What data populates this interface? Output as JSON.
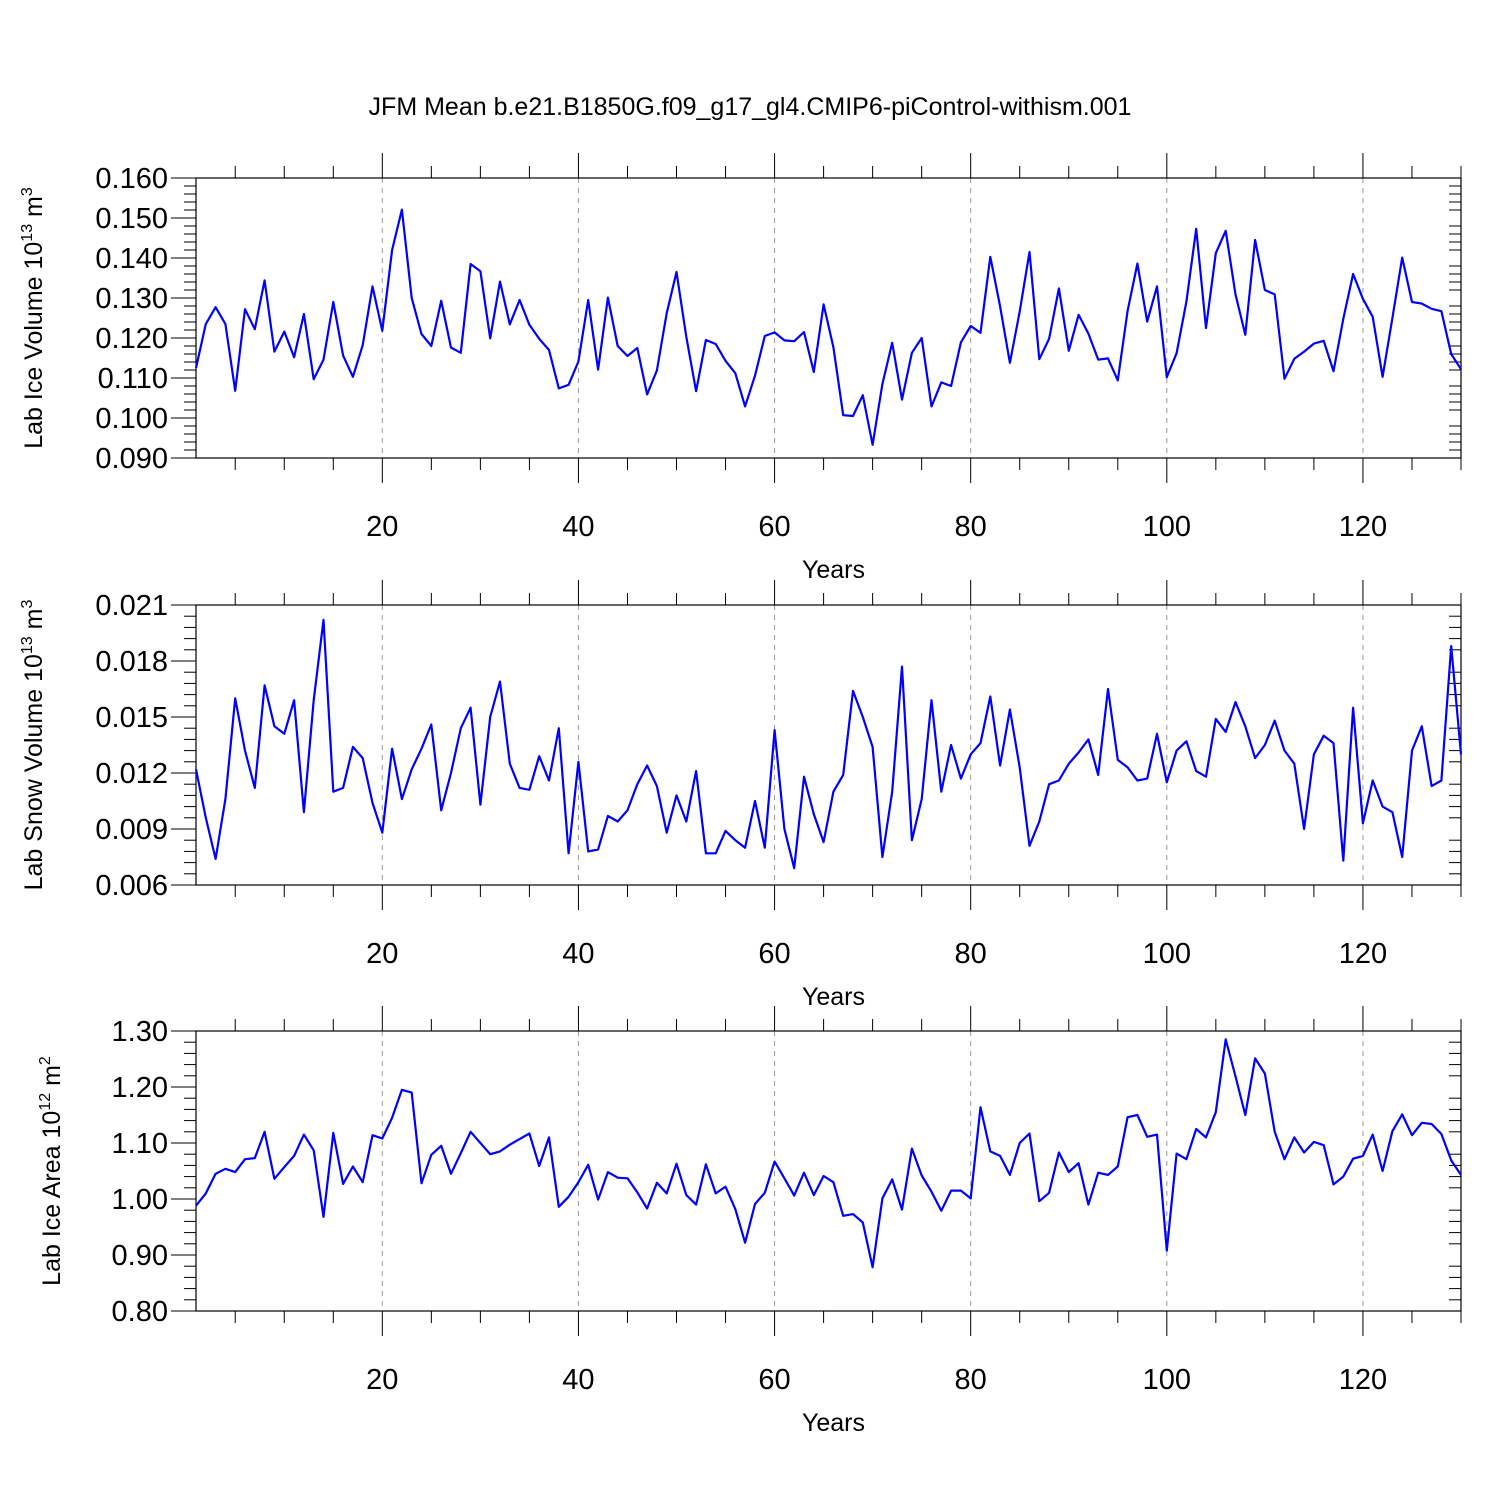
{
  "title": "JFM Mean b.e21.B1850G.f09_g17_gl4.CMIP6-piControl-withism.001",
  "colors": {
    "line": "#0000ff",
    "axis": "#000000",
    "grid": "#999999"
  },
  "chart_data": [
    {
      "type": "line",
      "name": "ice-volume",
      "ylabel": {
        "main": "Lab Ice Volume 10",
        "exp": "13",
        "unit": " m",
        "unit_exp": "3"
      },
      "xlabel": "Years",
      "xlim": [
        1,
        130
      ],
      "ylim": [
        0.09,
        0.16
      ],
      "xticks": [
        20,
        40,
        60,
        80,
        100,
        120
      ],
      "xtick_labels": [
        "20",
        "40",
        "60",
        "80",
        "100",
        "120"
      ],
      "yticks": [
        0.09,
        0.1,
        0.11,
        0.12,
        0.13,
        0.14,
        0.15,
        0.16
      ],
      "ytick_labels": [
        "0.090",
        "0.100",
        "0.110",
        "0.120",
        "0.130",
        "0.140",
        "0.150",
        "0.160"
      ],
      "yminor_step": 0.002,
      "x_start": 1,
      "values": [
        0.1125,
        0.1235,
        0.1277,
        0.1235,
        0.1068,
        0.1272,
        0.1222,
        0.1344,
        0.1166,
        0.1216,
        0.1152,
        0.126,
        0.1097,
        0.1146,
        0.129,
        0.1156,
        0.1103,
        0.1182,
        0.1329,
        0.1218,
        0.142,
        0.1521,
        0.13,
        0.121,
        0.118,
        0.1293,
        0.1176,
        0.1163,
        0.1385,
        0.1367,
        0.1199,
        0.1341,
        0.1234,
        0.1295,
        0.1233,
        0.1198,
        0.117,
        0.1074,
        0.1083,
        0.1141,
        0.1295,
        0.1121,
        0.1301,
        0.118,
        0.1155,
        0.1175,
        0.1059,
        0.1119,
        0.1262,
        0.1365,
        0.1203,
        0.1067,
        0.1195,
        0.1185,
        0.1143,
        0.1112,
        0.1029,
        0.1106,
        0.1205,
        0.1214,
        0.1194,
        0.1192,
        0.1215,
        0.1115,
        0.1284,
        0.1177,
        0.1007,
        0.1005,
        0.1057,
        0.0933,
        0.1085,
        0.1188,
        0.1046,
        0.1163,
        0.12,
        0.1029,
        0.1089,
        0.108,
        0.1189,
        0.123,
        0.1213,
        0.1403,
        0.1279,
        0.1138,
        0.1266,
        0.1415,
        0.1147,
        0.1198,
        0.1324,
        0.1168,
        0.1258,
        0.1211,
        0.1146,
        0.1149,
        0.1094,
        0.1268,
        0.1386,
        0.1241,
        0.1329,
        0.1102,
        0.1162,
        0.1291,
        0.1473,
        0.1225,
        0.1412,
        0.1468,
        0.1309,
        0.1208,
        0.1445,
        0.132,
        0.1309,
        0.1098,
        0.1148,
        0.1166,
        0.1186,
        0.1193,
        0.1117,
        0.1248,
        0.136,
        0.1298,
        0.1253,
        0.1103,
        0.125,
        0.1401,
        0.129,
        0.1286,
        0.1273,
        0.1267,
        0.116,
        0.1122
      ]
    },
    {
      "type": "line",
      "name": "snow-volume",
      "ylabel": {
        "main": "Lab Snow Volume 10",
        "exp": "13",
        "unit": " m",
        "unit_exp": "3"
      },
      "xlabel": "Years",
      "xlim": [
        1,
        130
      ],
      "ylim": [
        0.006,
        0.021
      ],
      "xticks": [
        20,
        40,
        60,
        80,
        100,
        120
      ],
      "xtick_labels": [
        "20",
        "40",
        "60",
        "80",
        "100",
        "120"
      ],
      "yticks": [
        0.006,
        0.009,
        0.012,
        0.015,
        0.018,
        0.021
      ],
      "ytick_labels": [
        "0.006",
        "0.009",
        "0.012",
        "0.015",
        "0.018",
        "0.021"
      ],
      "yminor_step": 0.0006,
      "x_start": 1,
      "values": [
        0.0122,
        0.0096,
        0.0074,
        0.0106,
        0.016,
        0.0132,
        0.0112,
        0.0167,
        0.0145,
        0.0141,
        0.0159,
        0.0099,
        0.0159,
        0.0202,
        0.011,
        0.0112,
        0.0134,
        0.0128,
        0.0104,
        0.0088,
        0.0133,
        0.0106,
        0.0122,
        0.0133,
        0.0146,
        0.01,
        0.012,
        0.0144,
        0.0155,
        0.0103,
        0.015,
        0.0169,
        0.0125,
        0.0112,
        0.0111,
        0.0129,
        0.0116,
        0.0144,
        0.0077,
        0.0126,
        0.0078,
        0.0079,
        0.0097,
        0.0094,
        0.01,
        0.0114,
        0.0124,
        0.0113,
        0.0088,
        0.0108,
        0.0094,
        0.0121,
        0.0077,
        0.0077,
        0.0089,
        0.0084,
        0.008,
        0.0105,
        0.008,
        0.0143,
        0.009,
        0.0069,
        0.0118,
        0.0098,
        0.0083,
        0.011,
        0.0119,
        0.0164,
        0.015,
        0.0134,
        0.0075,
        0.011,
        0.0177,
        0.0084,
        0.0106,
        0.0159,
        0.011,
        0.0135,
        0.0117,
        0.013,
        0.0136,
        0.0161,
        0.0124,
        0.0154,
        0.0123,
        0.0081,
        0.0094,
        0.0114,
        0.0116,
        0.0125,
        0.0131,
        0.0138,
        0.0119,
        0.0165,
        0.0127,
        0.0123,
        0.0116,
        0.0117,
        0.0141,
        0.0115,
        0.0132,
        0.0137,
        0.0121,
        0.0118,
        0.0149,
        0.0142,
        0.0158,
        0.0145,
        0.0128,
        0.0135,
        0.0148,
        0.0132,
        0.0125,
        0.009,
        0.013,
        0.014,
        0.0136,
        0.0073,
        0.0155,
        0.0093,
        0.0116,
        0.0102,
        0.0099,
        0.0075,
        0.0132,
        0.0145,
        0.0113,
        0.0116,
        0.0188,
        0.013
      ]
    },
    {
      "type": "line",
      "name": "ice-area",
      "ylabel": {
        "main": "Lab Ice Area 10",
        "exp": "12",
        "unit": " m",
        "unit_exp": "2"
      },
      "xlabel": "Years",
      "xlim": [
        1,
        130
      ],
      "ylim": [
        0.8,
        1.3
      ],
      "xticks": [
        20,
        40,
        60,
        80,
        100,
        120
      ],
      "xtick_labels": [
        "20",
        "40",
        "60",
        "80",
        "100",
        "120"
      ],
      "yticks": [
        0.8,
        0.9,
        1.0,
        1.1,
        1.2,
        1.3
      ],
      "ytick_labels": [
        "0.80",
        "0.90",
        "1.00",
        "1.10",
        "1.20",
        "1.30"
      ],
      "yminor_step": 0.02,
      "x_start": 1,
      "values": [
        0.988,
        1.01,
        1.045,
        1.054,
        1.048,
        1.071,
        1.073,
        1.12,
        1.036,
        1.057,
        1.077,
        1.115,
        1.087,
        0.968,
        1.118,
        1.027,
        1.058,
        1.03,
        1.114,
        1.108,
        1.145,
        1.195,
        1.19,
        1.028,
        1.079,
        1.095,
        1.045,
        1.082,
        1.12,
        1.1,
        1.08,
        1.085,
        1.097,
        1.107,
        1.117,
        1.059,
        1.11,
        0.986,
        1.004,
        1.03,
        1.061,
        0.999,
        1.048,
        1.038,
        1.037,
        1.012,
        0.983,
        1.029,
        1.01,
        1.063,
        1.007,
        0.99,
        1.062,
        1.01,
        1.022,
        0.982,
        0.922,
        0.991,
        1.011,
        1.067,
        1.037,
        1.006,
        1.047,
        1.007,
        1.041,
        1.03,
        0.97,
        0.973,
        0.958,
        0.878,
        1.001,
        1.035,
        0.981,
        1.09,
        1.042,
        1.013,
        0.979,
        1.015,
        1.015,
        1.001,
        1.164,
        1.085,
        1.077,
        1.043,
        1.1,
        1.117,
        0.996,
        1.011,
        1.083,
        1.048,
        1.064,
        0.99,
        1.047,
        1.043,
        1.058,
        1.146,
        1.15,
        1.111,
        1.115,
        0.908,
        1.081,
        1.071,
        1.125,
        1.11,
        1.155,
        1.285,
        1.219,
        1.15,
        1.251,
        1.224,
        1.12,
        1.071,
        1.11,
        1.083,
        1.102,
        1.096,
        1.026,
        1.04,
        1.072,
        1.077,
        1.115,
        1.05,
        1.121,
        1.151,
        1.114,
        1.136,
        1.134,
        1.116,
        1.069,
        1.043
      ]
    }
  ]
}
